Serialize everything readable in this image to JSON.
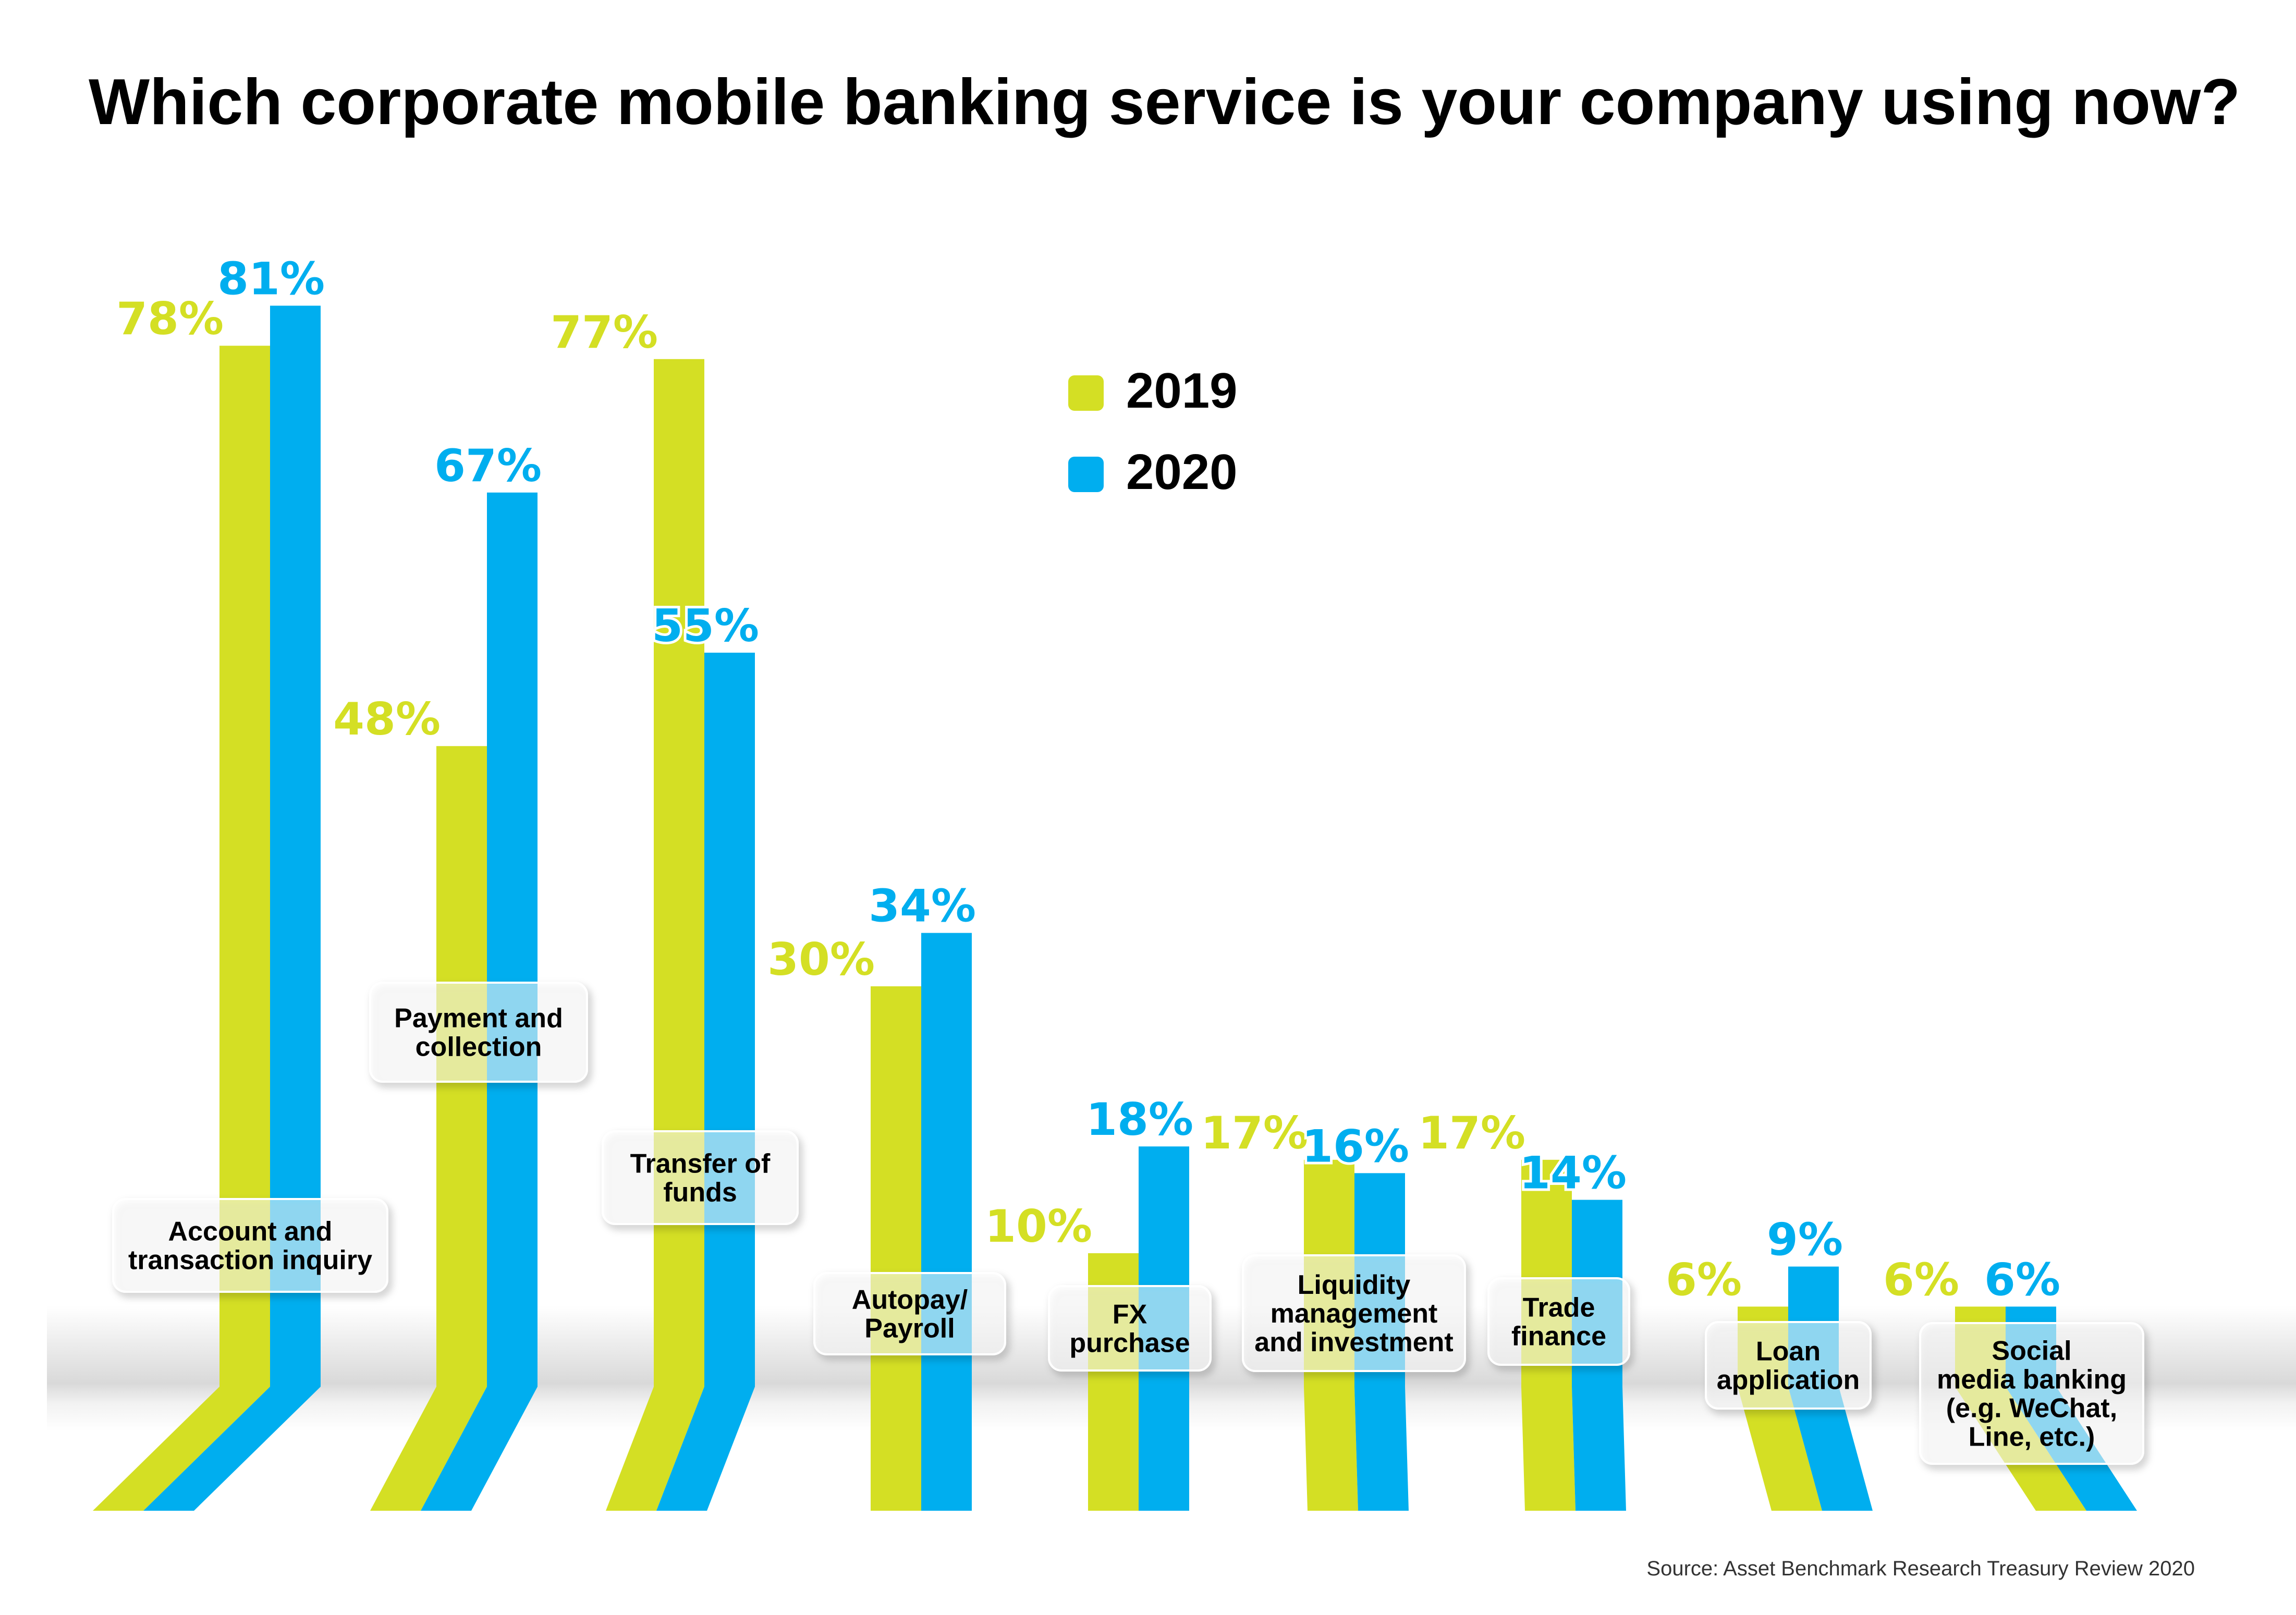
{
  "colors": {
    "series_2019": "#d4df24",
    "series_2020": "#00aeef",
    "text": "#000000",
    "source_text": "#333333",
    "background": "#ffffff"
  },
  "chart_data": {
    "type": "bar",
    "title": "Which corporate mobile banking service is your company using now?",
    "xlabel": "",
    "ylabel": "",
    "ylim": [
      0,
      100
    ],
    "grid": false,
    "legend_position": "top-center",
    "categories": [
      "Account and\ntransaction inquiry",
      "Payment and\ncollection",
      "Transfer of\nfunds",
      "Autopay/\nPayroll",
      "FX\npurchase",
      "Liquidity\nmanagement\nand investment",
      "Trade\nfinance",
      "Loan\napplication",
      "Social\nmedia banking\n(e.g. WeChat,\nLine, etc.)"
    ],
    "series": [
      {
        "name": "2019",
        "values": [
          78,
          48,
          77,
          30,
          10,
          17,
          17,
          6,
          6
        ],
        "labels": [
          "78%",
          "48%",
          "77%",
          "30%",
          "10%",
          "17%",
          "17%",
          "6%",
          "6%"
        ]
      },
      {
        "name": "2020",
        "values": [
          81,
          67,
          55,
          34,
          18,
          16,
          14,
          9,
          6
        ],
        "labels": [
          "81%",
          "67%",
          "55%",
          "34%",
          "18%",
          "16%",
          "14%",
          "9%",
          "6%"
        ]
      }
    ],
    "source": "Source: Asset Benchmark Research Treasury Review 2020"
  }
}
